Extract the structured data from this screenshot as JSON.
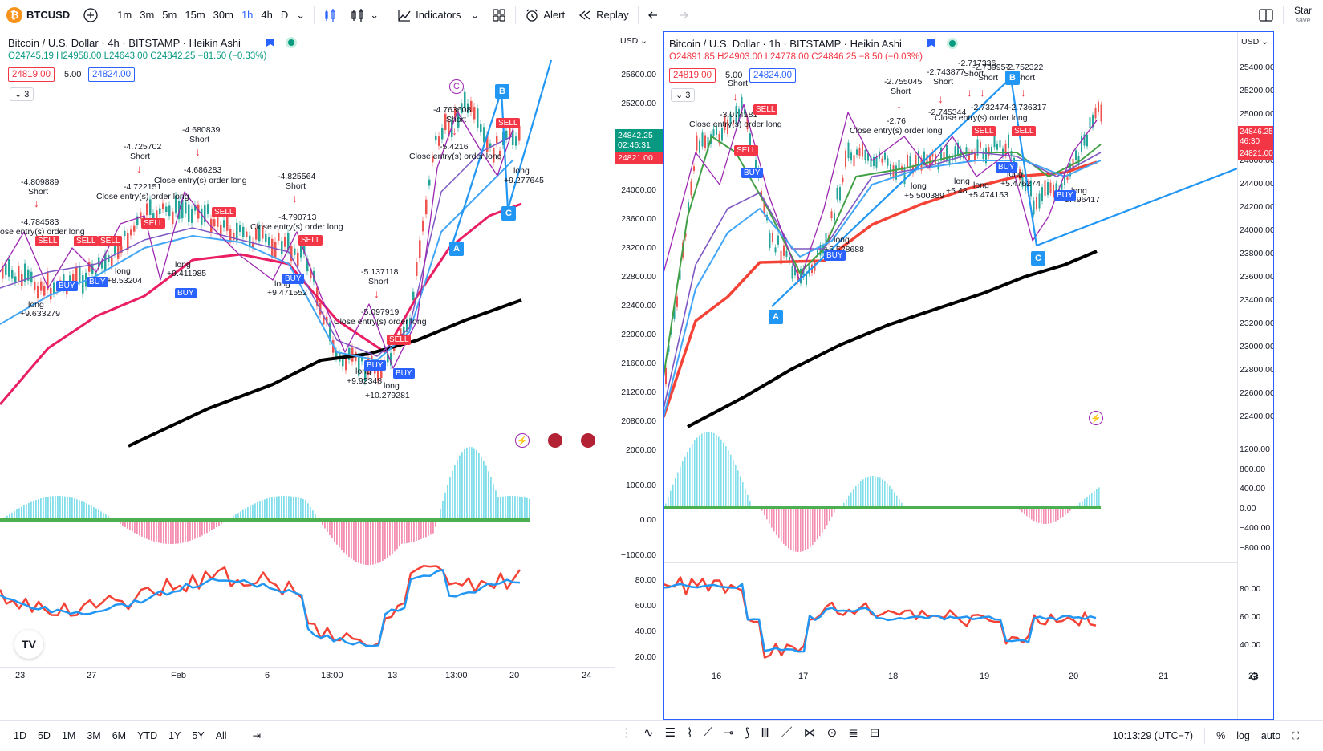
{
  "topbar": {
    "symbol": "BTCUSD",
    "symbol_icon": "bitcoin-icon",
    "timeframes": [
      "1m",
      "3m",
      "5m",
      "15m",
      "30m",
      "1h",
      "4h",
      "D"
    ],
    "active_timeframe": "1h",
    "indicators_label": "Indicators",
    "alert_label": "Alert",
    "replay_label": "Replay",
    "star_label": "Star",
    "save_label": "save"
  },
  "left_chart": {
    "title": "Bitcoin / U.S. Dollar · 4h · BITSTAMP · Heikin Ashi",
    "ohlc": {
      "o": "O24745.19",
      "h": "H24958.00",
      "l": "L24643.00",
      "c": "C24842.25",
      "chg": "−81.50 (−0.33%)"
    },
    "sell_price": "24819.00",
    "qty": "5.00",
    "buy_price": "24824.00",
    "collapse": "3",
    "axis_currency": "USD",
    "price_ticks": [
      "25600.00",
      "25200.00",
      "24800.00",
      "24400.00",
      "24000.00",
      "23600.00",
      "23200.00",
      "22800.00",
      "22400.00",
      "22000.00",
      "21600.00",
      "21200.00",
      "20800.00"
    ],
    "current_price": "24842.25",
    "countdown": "02:46:31",
    "bid_price": "24821.00",
    "osc_ticks": [
      "2000.00",
      "1000.00",
      "0.00",
      "−1000.00"
    ],
    "rsi_ticks": [
      "80.00",
      "60.00",
      "40.00",
      "20.00"
    ],
    "time_ticks": [
      "23",
      "27",
      "Feb",
      "6",
      "13:00",
      "13",
      "13:00",
      "20",
      "24"
    ],
    "signals": [
      {
        "text": "-4.809889"
      },
      {
        "text": "Short"
      },
      {
        "text": "-4.784583"
      },
      {
        "text": "ose entry(s) order long"
      },
      {
        "text": "long"
      },
      {
        "text": "+9.633279"
      },
      {
        "text": "-4.725702"
      },
      {
        "text": "Short"
      },
      {
        "text": "-4.722151"
      },
      {
        "text": "Close entry(s) order long"
      },
      {
        "text": "long"
      },
      {
        "text": "+8.53204"
      },
      {
        "text": "-4.680839"
      },
      {
        "text": "Short"
      },
      {
        "text": "-4.686283"
      },
      {
        "text": "Close entry(s) order long"
      },
      {
        "text": "long"
      },
      {
        "text": "+9.411985"
      },
      {
        "text": "-4.825564"
      },
      {
        "text": "Short"
      },
      {
        "text": "-4.790713"
      },
      {
        "text": "Close entry(s) order long"
      },
      {
        "text": "long"
      },
      {
        "text": "+9.471552"
      },
      {
        "text": "-5.137118"
      },
      {
        "text": "Short"
      },
      {
        "text": "-5.097919"
      },
      {
        "text": "Close entry(s) order long"
      },
      {
        "text": "long"
      },
      {
        "text": "+9.92348"
      },
      {
        "text": "long"
      },
      {
        "text": "+10.279281"
      },
      {
        "text": "-4.763608"
      },
      {
        "text": "Short"
      },
      {
        "text": "-5.4216"
      },
      {
        "text": "Close entry(s) order long"
      },
      {
        "text": "long"
      },
      {
        "text": "+9.277645"
      }
    ],
    "tags": {
      "sell": "SELL",
      "buy": "BUY",
      "a": "A",
      "b": "B",
      "c": "C",
      "c_circle": "C"
    }
  },
  "right_chart": {
    "title": "Bitcoin / U.S. Dollar · 1h · BITSTAMP · Heikin Ashi",
    "ohlc": {
      "o": "O24891.85",
      "h": "H24903.00",
      "l": "L24778.00",
      "c": "C24846.25",
      "chg": "−8.50 (−0.03%)"
    },
    "sell_price": "24819.00",
    "qty": "5.00",
    "buy_price": "24824.00",
    "collapse": "3",
    "axis_currency": "USD",
    "price_ticks": [
      "25400.00",
      "25200.00",
      "25000.00",
      "24800.00",
      "24600.00",
      "24400.00",
      "24200.00",
      "24000.00",
      "23800.00",
      "23600.00",
      "23400.00",
      "23200.00",
      "23000.00",
      "22800.00",
      "22600.00",
      "22400.00"
    ],
    "current_price": "24846.25",
    "countdown": "46:30",
    "bid_price": "24821.00",
    "osc_ticks": [
      "1200.00",
      "800.00",
      "400.00",
      "0.00",
      "−400.00",
      "−800.00"
    ],
    "rsi_ticks": [
      "80.00",
      "60.00",
      "40.00"
    ],
    "time_ticks": [
      "16",
      "17",
      "18",
      "19",
      "20",
      "21",
      "22"
    ],
    "signals": [
      {
        "text": "-3.074181"
      },
      {
        "text": "Short"
      },
      {
        "text": "Close entry(s) order long"
      },
      {
        "text": "-2.755045"
      },
      {
        "text": "Short"
      },
      {
        "text": "-2.743877"
      },
      {
        "text": "Short"
      },
      {
        "text": "-2.717336"
      },
      {
        "text": "Short"
      },
      {
        "text": "-2.739957"
      },
      {
        "text": "Short"
      },
      {
        "text": "-2.752322"
      },
      {
        "text": "Short"
      },
      {
        "text": "-2.76"
      },
      {
        "text": "Close entry(s) order long"
      },
      {
        "text": "-2.745344"
      },
      {
        "text": "-2.732474"
      },
      {
        "text": "-2.736317"
      },
      {
        "text": "Close entry(s) order long"
      },
      {
        "text": "long"
      },
      {
        "text": "+5.528688"
      },
      {
        "text": "long"
      },
      {
        "text": "+5.500389"
      },
      {
        "text": "long"
      },
      {
        "text": "+5.48"
      },
      {
        "text": "long"
      },
      {
        "text": "+5.474153"
      },
      {
        "text": "long"
      },
      {
        "text": "+5.476274"
      },
      {
        "text": "long"
      },
      {
        "text": "+5.496417"
      }
    ],
    "tags": {
      "sell": "SELL",
      "buy": "BUY",
      "a": "A",
      "b": "B",
      "c": "C"
    }
  },
  "bottombar": {
    "ranges": [
      "1D",
      "5D",
      "1M",
      "3M",
      "6M",
      "YTD",
      "1Y",
      "5Y",
      "All"
    ],
    "clock": "10:13:29 (UTC−7)",
    "percent_label": "%",
    "log_label": "log",
    "auto_label": "auto"
  },
  "colors": {
    "accent": "#2962ff",
    "up": "#089981",
    "down": "#f23645",
    "ma_red": "#e91e63",
    "ma_black": "#000000",
    "rsi_red": "#f44336",
    "rsi_blue": "#2196f3"
  }
}
